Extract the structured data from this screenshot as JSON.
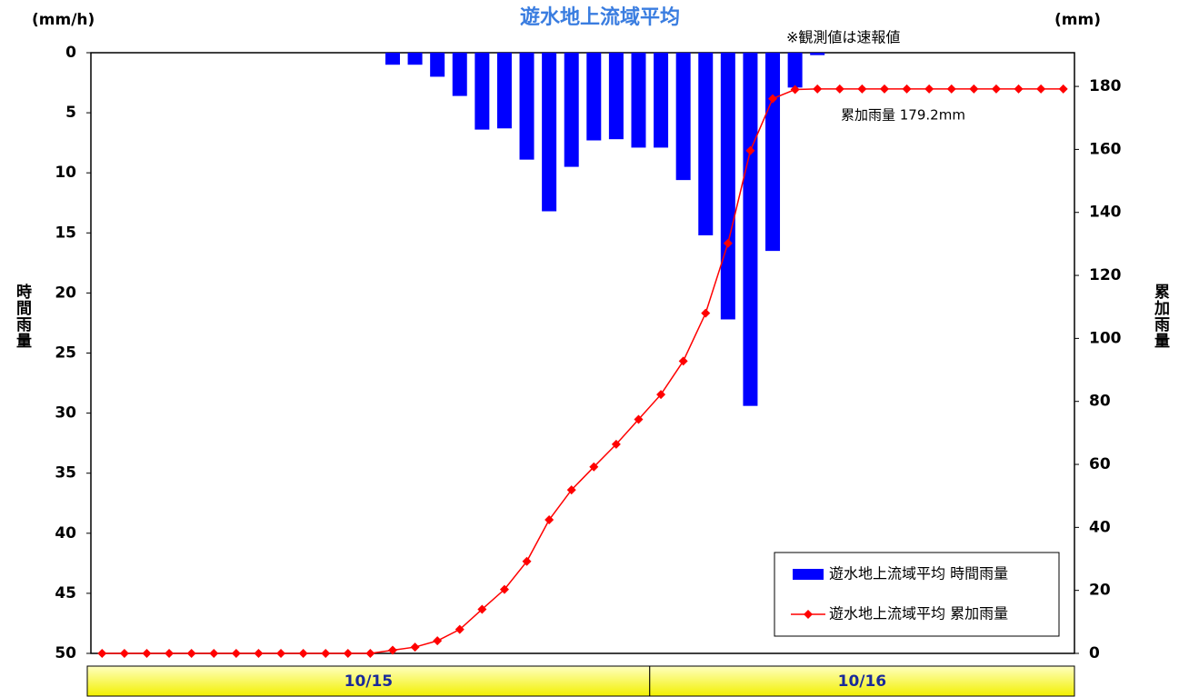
{
  "chart_data": {
    "type": "bar-line",
    "title": "遊水地上流域平均",
    "note": "※観測値は速報値",
    "y_unit": "(mm/h)",
    "y2_unit": "(mm)",
    "y_label": "時間雨量",
    "y2_label": "累加雨量",
    "annotation": "累加雨量 179.2mm",
    "categories": [
      null,
      null,
      null,
      null,
      null,
      null,
      null,
      null,
      null,
      null,
      null,
      null,
      null,
      null,
      null,
      null,
      null,
      null,
      null,
      null,
      null,
      null,
      null,
      null,
      null,
      null,
      null,
      null,
      null,
      null,
      null,
      null,
      null,
      null,
      null,
      null,
      null,
      null,
      null,
      null,
      null,
      null,
      null,
      null
    ],
    "date_groups": [
      {
        "label": "10/15",
        "count": 25
      },
      {
        "label": "10/16",
        "count": 19
      }
    ],
    "ylim": [
      0,
      50
    ],
    "y_inverted": true,
    "yticks": [
      0,
      5,
      10,
      15,
      20,
      25,
      30,
      35,
      40,
      45,
      50
    ],
    "y2lim": [
      0,
      190.7
    ],
    "y2ticks": [
      0,
      20,
      40,
      60,
      80,
      100,
      120,
      140,
      160,
      180
    ],
    "series": [
      {
        "name": "遊水地上流域平均 時間雨量",
        "type": "bar",
        "axis": "y",
        "color": "#0000ff",
        "values": [
          0,
          0,
          0,
          0,
          0,
          0,
          0,
          0,
          0,
          0,
          0,
          0,
          0,
          1.0,
          1.0,
          2.0,
          3.6,
          6.4,
          6.3,
          8.9,
          13.2,
          9.5,
          7.3,
          7.2,
          7.9,
          7.9,
          10.6,
          15.2,
          22.2,
          29.4,
          16.5,
          2.9,
          0.2,
          0,
          0,
          0,
          0,
          0,
          0,
          0,
          0,
          0,
          0,
          0
        ]
      },
      {
        "name": "遊水地上流域平均 累加雨量",
        "type": "line",
        "axis": "y2",
        "color": "#ff0000",
        "values": [
          0,
          0,
          0,
          0,
          0,
          0,
          0,
          0,
          0,
          0,
          0,
          0,
          0,
          1,
          2,
          4,
          7.6,
          14,
          20.3,
          29.2,
          42.4,
          51.9,
          59.2,
          66.4,
          74.3,
          82.2,
          92.8,
          108,
          130.2,
          159.6,
          176.1,
          179,
          179.2,
          179.2,
          179.2,
          179.2,
          179.2,
          179.2,
          179.2,
          179.2,
          179.2,
          179.2,
          179.2,
          179.2
        ]
      }
    ]
  }
}
